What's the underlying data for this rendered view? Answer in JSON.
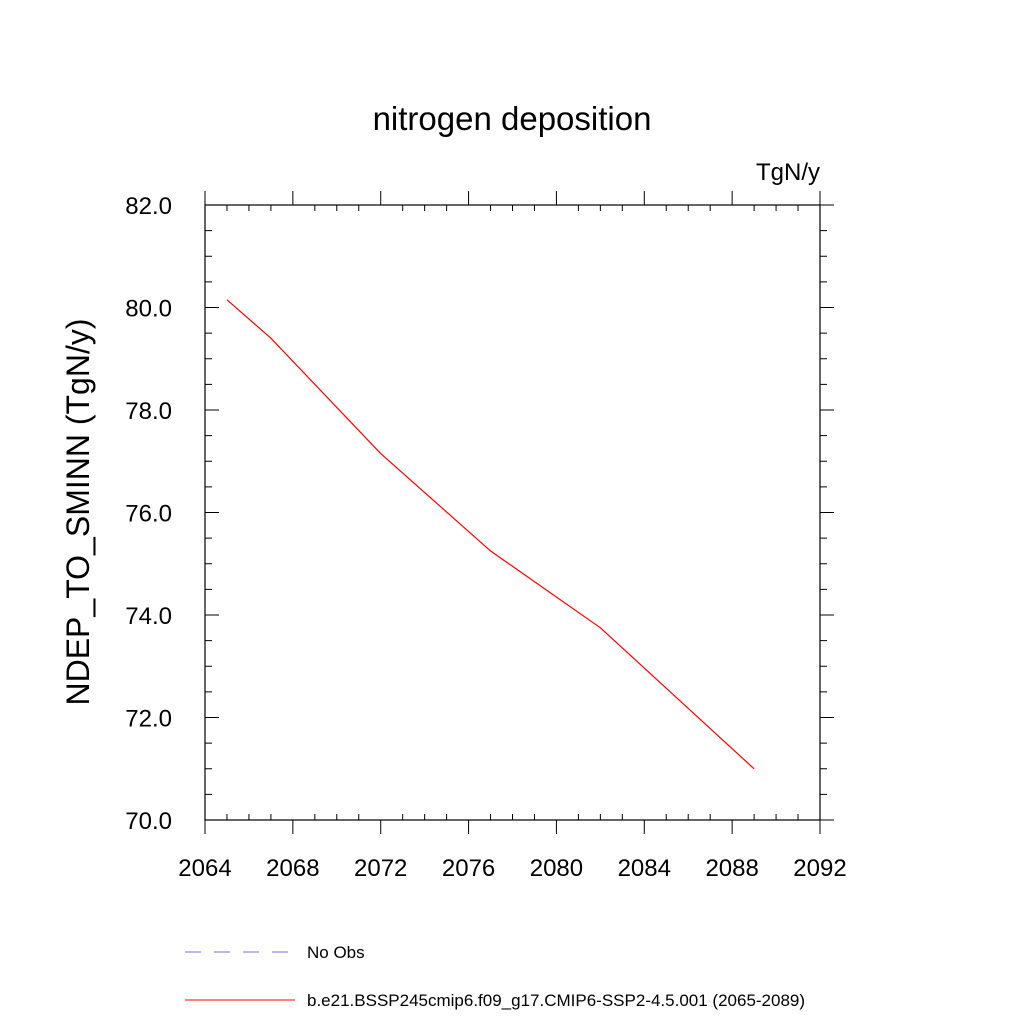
{
  "chart_data": {
    "type": "line",
    "title": "nitrogen deposition",
    "units": "TgN/y",
    "ylabel": "NDEP_TO_SMINN  (TgN/y)",
    "xlabel": "",
    "xlim": [
      2064,
      2092
    ],
    "ylim": [
      70.0,
      82.0
    ],
    "xticks": [
      "2064",
      "2068",
      "2072",
      "2076",
      "2080",
      "2084",
      "2088",
      "2092"
    ],
    "yticks": [
      "70.0",
      "72.0",
      "74.0",
      "76.0",
      "78.0",
      "80.0",
      "82.0"
    ],
    "grid": false,
    "legend": "bottom",
    "series": [
      {
        "name": "b.e21.BSSP245cmip6.f09_g17.CMIP6-SSP2-4.5.001 (2065-2089)",
        "color": "#ff0000",
        "style": "solid",
        "x": [
          2065,
          2067,
          2072,
          2077,
          2082,
          2089
        ],
        "y": [
          80.15,
          79.4,
          77.15,
          75.25,
          73.75,
          71.0
        ]
      },
      {
        "name": "No Obs",
        "color": "#7b6fd0",
        "style": "dashed",
        "x": [],
        "y": []
      }
    ]
  }
}
